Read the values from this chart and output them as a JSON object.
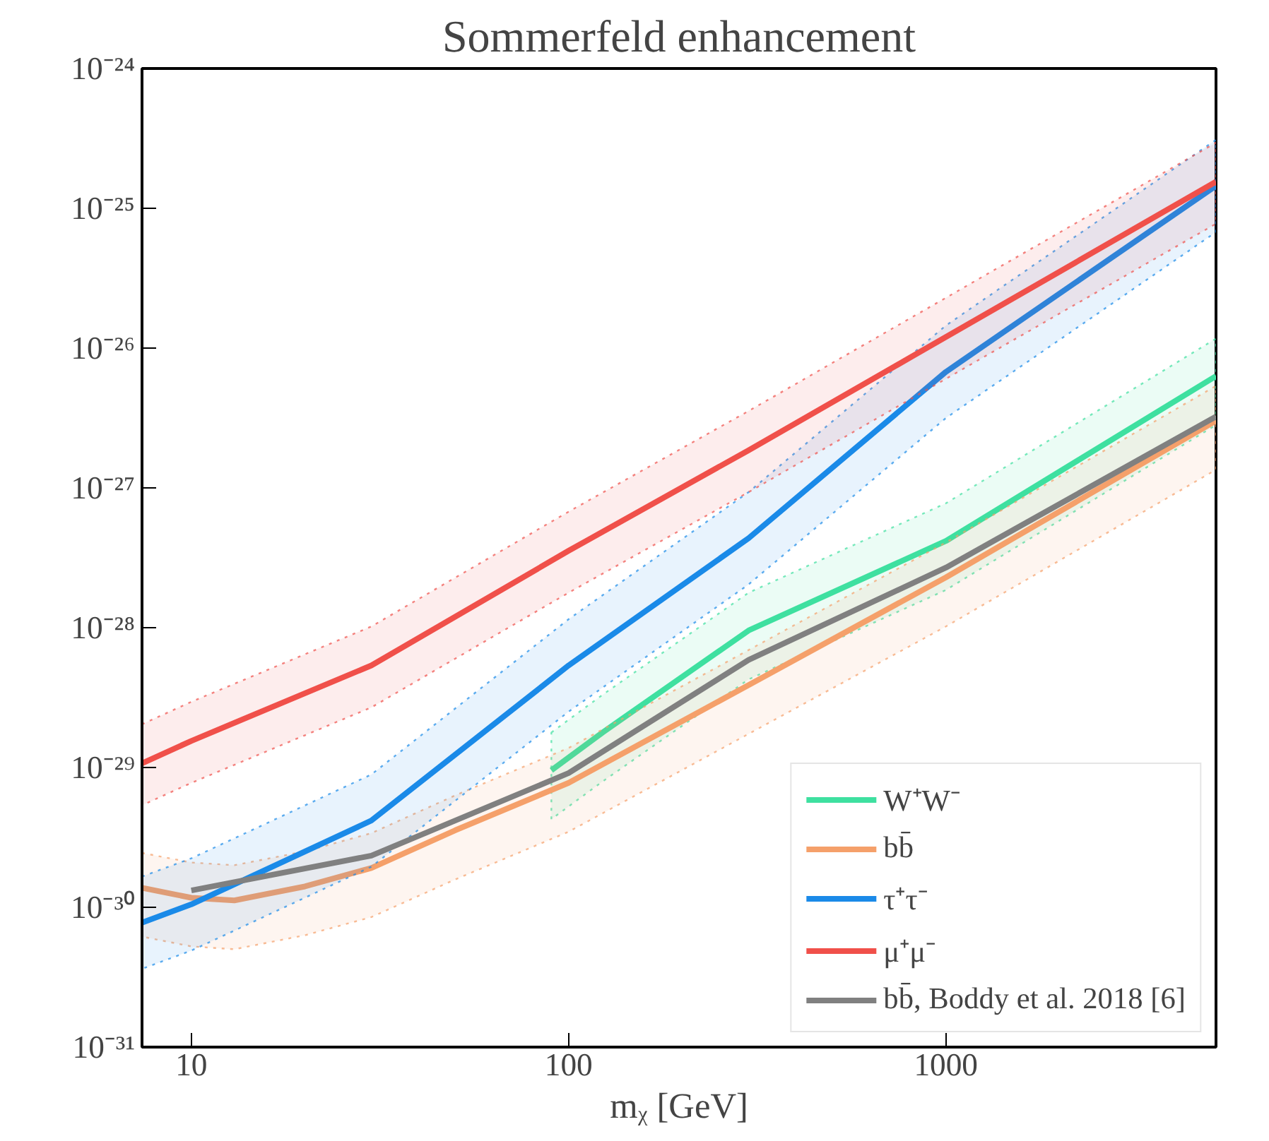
{
  "chart_data": {
    "type": "line",
    "title": "Sommerfeld enhancement",
    "xlabel": "mᵪ [GeV]",
    "log": "xy",
    "xlim": [
      7.4,
      5200
    ],
    "ylim": [
      1e-31,
      1e-24
    ],
    "xticks": [
      10,
      100,
      1000
    ],
    "yticks": [
      {
        "value": 1e-31,
        "label": "10⁻³¹"
      },
      {
        "value": 1e-30,
        "label": "10⁻³⁰"
      },
      {
        "value": 1e-29,
        "label": "10⁻²⁹"
      },
      {
        "value": 1e-28,
        "label": "10⁻²⁸"
      },
      {
        "value": 1e-27,
        "label": "10⁻²⁷"
      },
      {
        "value": 1e-26,
        "label": "10⁻²⁶"
      },
      {
        "value": 1e-25,
        "label": "10⁻²⁵"
      },
      {
        "value": 1e-24,
        "label": "10⁻²⁴"
      }
    ],
    "grid": false,
    "legend": "bottom right",
    "line_style": "solid",
    "marker": "none",
    "series": [
      {
        "name": "W⁺W⁻",
        "color": "#3ee0a0",
        "x": [
          90,
          123,
          300,
          1000,
          5200
        ],
        "values": [
          9.55e-30,
          1.78e-29,
          9.55e-29,
          4.17e-28,
          6.31e-27
        ],
        "upper": [
          1.78e-29,
          3.31e-29,
          1.78e-28,
          7.76e-28,
          1.17e-26
        ],
        "lower": [
          4.27e-30,
          7.94e-30,
          4.27e-29,
          1.86e-28,
          2.82e-27
        ]
      },
      {
        "name": "bb̄",
        "color": "#f5a06a",
        "x": [
          7.4,
          10,
          13,
          20,
          30,
          50,
          100,
          300,
          1000,
          5200
        ],
        "values": [
          1.38e-30,
          1.17e-30,
          1.12e-30,
          1.41e-30,
          1.91e-30,
          3.55e-30,
          7.76e-30,
          3.89e-29,
          2.29e-28,
          3.02e-27
        ],
        "upper": [
          2.45e-30,
          2.09e-30,
          2e-30,
          2.51e-30,
          3.39e-30,
          6.31e-30,
          1.38e-29,
          6.92e-29,
          4.07e-28,
          5.37e-27
        ],
        "lower": [
          6.17e-31,
          5.25e-31,
          5.01e-31,
          6.31e-31,
          8.51e-31,
          1.58e-30,
          3.47e-30,
          1.74e-29,
          1.02e-28,
          1.35e-27
        ]
      },
      {
        "name": "τ⁺τ⁻",
        "color": "#1a8ae8",
        "x": [
          7.4,
          10,
          30,
          100,
          300,
          1000,
          5200
        ],
        "values": [
          7.76e-31,
          1.05e-30,
          4.17e-30,
          5.37e-29,
          4.37e-28,
          6.76e-27,
          1.45e-25
        ],
        "upper": [
          1.66e-30,
          2.24e-30,
          8.91e-30,
          1.15e-28,
          9.33e-28,
          1.45e-26,
          3.09e-25
        ],
        "lower": [
          3.63e-31,
          4.9e-31,
          1.95e-30,
          2.51e-29,
          2.04e-28,
          3.16e-27,
          6.76e-26
        ]
      },
      {
        "name": "μ⁺μ⁻",
        "color": "#f0504a",
        "x": [
          7.4,
          10,
          30,
          100,
          300,
          1000,
          5200
        ],
        "values": [
          1.07e-29,
          1.55e-29,
          5.37e-29,
          3.55e-28,
          1.86e-27,
          1.2e-26,
          1.55e-25
        ],
        "upper": [
          2.04e-29,
          2.95e-29,
          1.02e-28,
          6.76e-28,
          3.55e-27,
          2.29e-26,
          2.95e-25
        ],
        "lower": [
          5.37e-30,
          7.76e-30,
          2.69e-29,
          1.78e-28,
          9.33e-28,
          6.03e-27,
          7.76e-26
        ]
      },
      {
        "name": "bb̄, Boddy et al. 2018 [6]",
        "color": "#808080",
        "x": [
          10,
          30,
          100,
          300,
          1000,
          5200
        ],
        "values": [
          1.32e-30,
          2.34e-30,
          9.12e-30,
          5.89e-29,
          2.69e-28,
          3.24e-27
        ]
      }
    ]
  }
}
